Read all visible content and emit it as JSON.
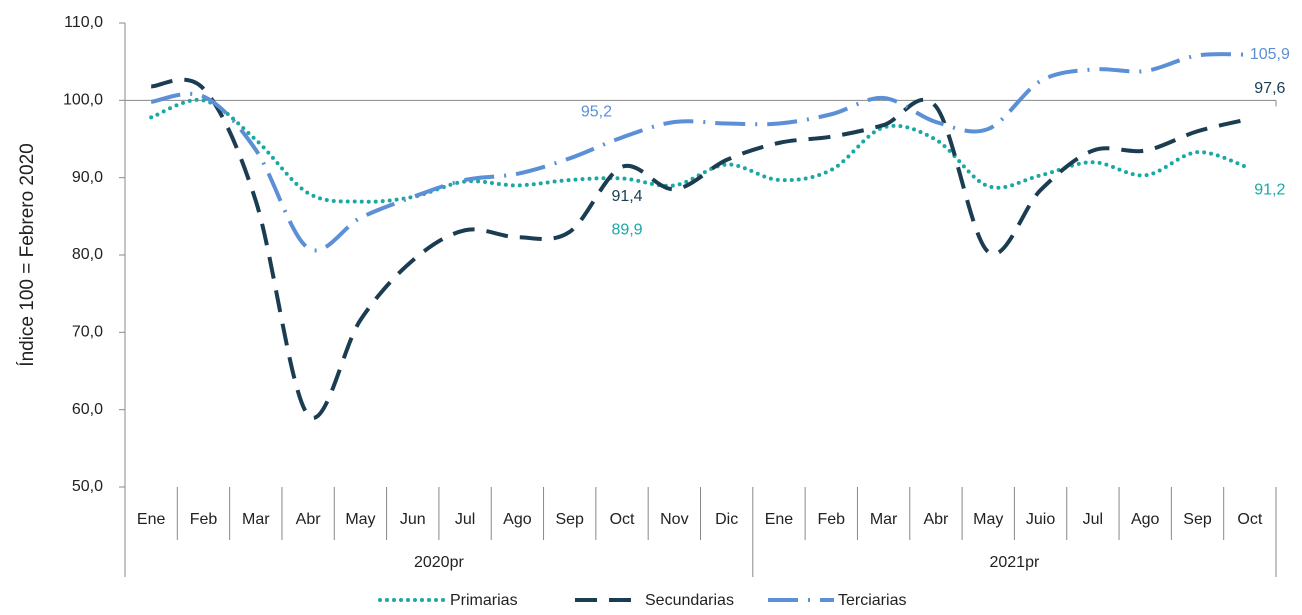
{
  "chart_data": {
    "type": "line",
    "ylabel": "Índice 100 = Febrero 2020",
    "category_groups": [
      {
        "name": "2020pr",
        "categories": [
          "Ene",
          "Feb",
          "Mar",
          "Abr",
          "May",
          "Jun",
          "Jul",
          "Ago",
          "Sep",
          "Oct",
          "Nov",
          "Dic"
        ]
      },
      {
        "name": "2021pr",
        "categories": [
          "Ene",
          "Feb",
          "Mar",
          "Abr",
          "May",
          "Juio",
          "Jul",
          "Ago",
          "Sep",
          "Oct"
        ]
      }
    ],
    "ylim": [
      50,
      110
    ],
    "yticks": [
      {
        "value": 50,
        "label": "50,0"
      },
      {
        "value": 60,
        "label": "60,0"
      },
      {
        "value": 70,
        "label": "70,0"
      },
      {
        "value": 80,
        "label": "80,0"
      },
      {
        "value": 90,
        "label": "90,0"
      },
      {
        "value": 100,
        "label": "100,0"
      },
      {
        "value": 110,
        "label": "110,0"
      }
    ],
    "x_axis_crosses": 100,
    "legend": "bottom",
    "series": [
      {
        "name": "Primarias",
        "color": "#1aa8a4",
        "style": "dotted",
        "values": [
          97.8,
          100,
          94.9,
          88,
          86.9,
          87.5,
          89.5,
          89,
          89.7,
          89.9,
          89,
          91.7,
          89.7,
          91,
          96.5,
          94.9,
          88.9,
          90.3,
          92,
          90.3,
          93.3,
          91.2
        ],
        "value_labels": [
          null,
          null,
          null,
          null,
          null,
          null,
          null,
          null,
          null,
          "89,9",
          null,
          null,
          null,
          null,
          null,
          null,
          null,
          null,
          null,
          null,
          null,
          "91,2"
        ]
      },
      {
        "name": "Secundarias",
        "color": "#1b3d52",
        "style": "dashed",
        "values": [
          101.8,
          101.5,
          87,
          59.3,
          71.6,
          79.3,
          83.2,
          82.3,
          83,
          91.4,
          88.5,
          92.3,
          94.5,
          95.3,
          96.8,
          99.2,
          80.4,
          88.4,
          93.5,
          93.5,
          96,
          97.6
        ],
        "value_labels": [
          null,
          null,
          null,
          null,
          null,
          null,
          null,
          null,
          null,
          "91,4",
          null,
          null,
          null,
          null,
          null,
          null,
          null,
          null,
          null,
          null,
          null,
          "97,6"
        ]
      },
      {
        "name": "Terciarias",
        "color": "#5b8fd6",
        "style": "dashdot",
        "values": [
          99.8,
          100.5,
          93.6,
          80.9,
          84.8,
          87.5,
          89.7,
          90.5,
          92.5,
          95.2,
          97.2,
          97,
          97,
          98.2,
          100.3,
          97.2,
          96.3,
          102.5,
          104,
          103.8,
          105.8,
          105.9
        ],
        "value_labels": [
          null,
          null,
          null,
          null,
          null,
          null,
          null,
          null,
          null,
          "95,2",
          null,
          null,
          null,
          null,
          null,
          null,
          null,
          null,
          null,
          null,
          null,
          "105,9"
        ]
      }
    ]
  }
}
